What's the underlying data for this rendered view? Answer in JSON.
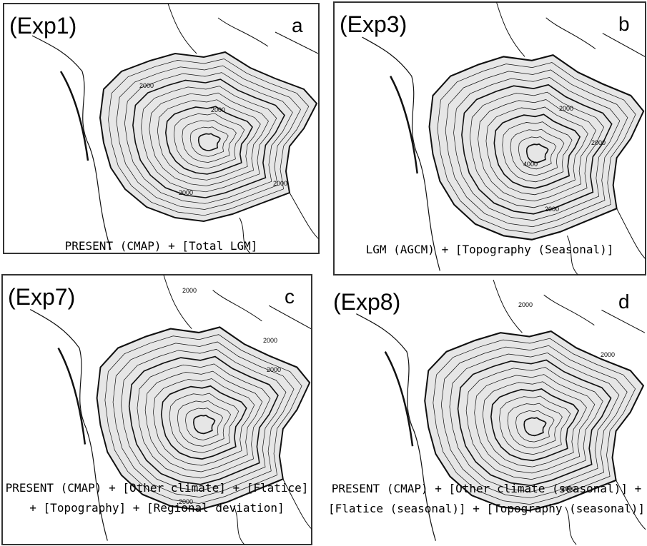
{
  "panels": [
    {
      "label": "(Exp1)",
      "letter": "a",
      "caption": [
        "PRESENT (CMAP) + [Total LGM]"
      ],
      "contour_labels": [
        "2000",
        "2000",
        "2000",
        "2000"
      ]
    },
    {
      "label": "(Exp3)",
      "letter": "b",
      "caption": [
        "LGM (AGCM) + [Topography (Seasonal)]"
      ],
      "contour_labels": [
        "2000",
        "2000",
        "4000",
        "2000"
      ]
    },
    {
      "label": "(Exp7)",
      "letter": "c",
      "caption": [
        "PRESENT (CMAP) + [Other climate] + [Flatice]",
        "+ [Topography] + [Regional deviation]"
      ],
      "contour_labels": [
        "2000",
        "2000",
        "2000",
        "2000"
      ]
    },
    {
      "label": "(Exp8)",
      "letter": "d",
      "caption": [
        "PRESENT (CMAP) + [Other climate (seasonal)] +",
        "[Flatice (seasonal)] + [Topography (seasonal)]"
      ],
      "contour_labels": [
        "2000",
        "2000",
        "2000"
      ]
    }
  ]
}
